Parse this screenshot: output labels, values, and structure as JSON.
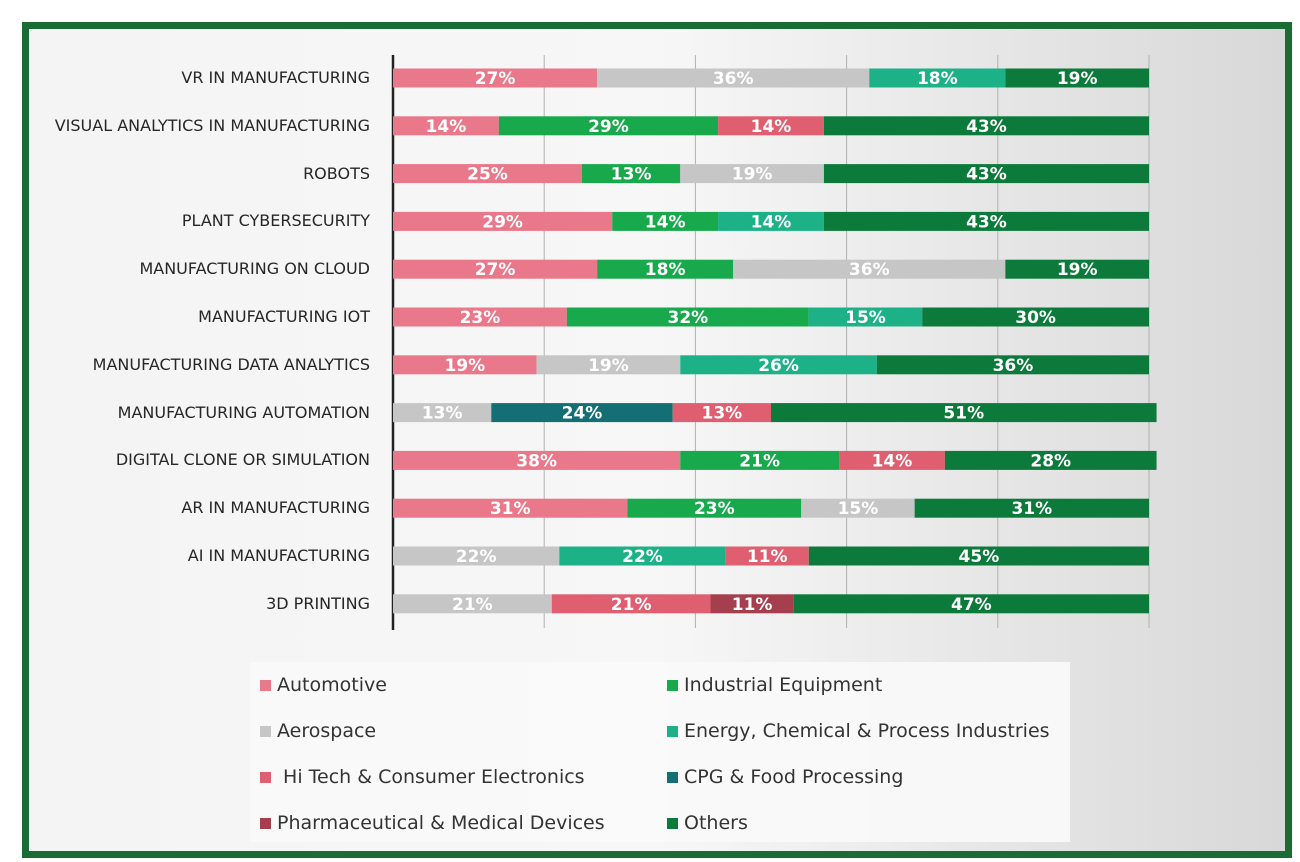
{
  "chart_data": {
    "type": "stacked-bar-horizontal",
    "categories": [
      "VR IN MANUFACTURING",
      "VISUAL ANALYTICS IN MANUFACTURING",
      "ROBOTS",
      "PLANT CYBERSECURITY",
      "MANUFACTURING ON CLOUD",
      "MANUFACTURING IOT",
      "MANUFACTURING DATA ANALYTICS",
      "MANUFACTURING AUTOMATION",
      "DIGITAL CLONE OR SIMULATION",
      "AR IN MANUFACTURING",
      "AI IN MANUFACTURING",
      "3D PRINTING"
    ],
    "series": [
      {
        "name": "Automotive",
        "color": "#e9788a",
        "values": [
          27,
          14,
          25,
          29,
          27,
          23,
          19,
          null,
          38,
          31,
          null,
          null
        ],
        "value_labels": [
          "27%",
          "14%",
          "25%",
          "29%",
          "27%",
          "23%",
          "19%",
          null,
          "38%",
          "31%",
          null,
          null
        ]
      },
      {
        "name": "Industrial Equipment",
        "color": "#18a94c",
        "values": [
          null,
          29,
          13,
          14,
          18,
          32,
          null,
          null,
          21,
          23,
          null,
          null
        ],
        "value_labels": [
          null,
          "29%",
          "13%",
          "14%",
          "18%",
          "32%",
          null,
          null,
          "21%",
          "23%",
          null,
          null
        ]
      },
      {
        "name": "Aerospace",
        "color": "#c6c6c6",
        "values": [
          36,
          null,
          19,
          null,
          36,
          null,
          19,
          13,
          null,
          15,
          22,
          21
        ],
        "value_labels": [
          "36%",
          null,
          "19%",
          null,
          "36%",
          null,
          "19%",
          "13%",
          null,
          "15%",
          "22%",
          "21%"
        ]
      },
      {
        "name": "Energy, Chemical & Process Industries",
        "color": "#1cb187",
        "values": [
          18,
          null,
          null,
          14,
          null,
          15,
          26,
          null,
          null,
          null,
          22,
          null
        ],
        "value_labels": [
          "18%",
          null,
          null,
          "14%",
          null,
          "15%",
          "26%",
          null,
          null,
          null,
          "22%",
          null
        ]
      },
      {
        "name": "CPG & Food Processing",
        "color": "#146f74",
        "values": [
          null,
          null,
          null,
          null,
          null,
          null,
          null,
          24,
          null,
          null,
          null,
          null
        ],
        "value_labels": [
          null,
          null,
          null,
          null,
          null,
          null,
          null,
          "24%",
          null,
          null,
          null,
          null
        ]
      },
      {
        "name": " Hi Tech & Consumer Electronics",
        "color": "#df5f70",
        "values": [
          null,
          14,
          null,
          null,
          null,
          null,
          null,
          13,
          14,
          null,
          11,
          21
        ],
        "value_labels": [
          null,
          "14%",
          null,
          null,
          null,
          null,
          null,
          "13%",
          "14%",
          null,
          "11%",
          "21%"
        ]
      },
      {
        "name": "Pharmaceutical & Medical Devices",
        "color": "#a53f4e",
        "values": [
          null,
          null,
          null,
          null,
          null,
          null,
          null,
          null,
          null,
          null,
          null,
          11
        ],
        "value_labels": [
          null,
          null,
          null,
          null,
          null,
          null,
          null,
          null,
          null,
          null,
          null,
          "11%"
        ]
      },
      {
        "name": "Others",
        "color": "#0c7a3a",
        "values": [
          19,
          43,
          43,
          43,
          19,
          30,
          36,
          51,
          28,
          31,
          45,
          47
        ],
        "value_labels": [
          "19%",
          "43%",
          "43%",
          "43%",
          "19%",
          "30%",
          "36%",
          "51%",
          "28%",
          "31%",
          "45%",
          "47%"
        ]
      }
    ],
    "xlim": [
      0,
      100
    ],
    "xticks": [
      0,
      20,
      40,
      60,
      80,
      100
    ],
    "grid": true
  }
}
